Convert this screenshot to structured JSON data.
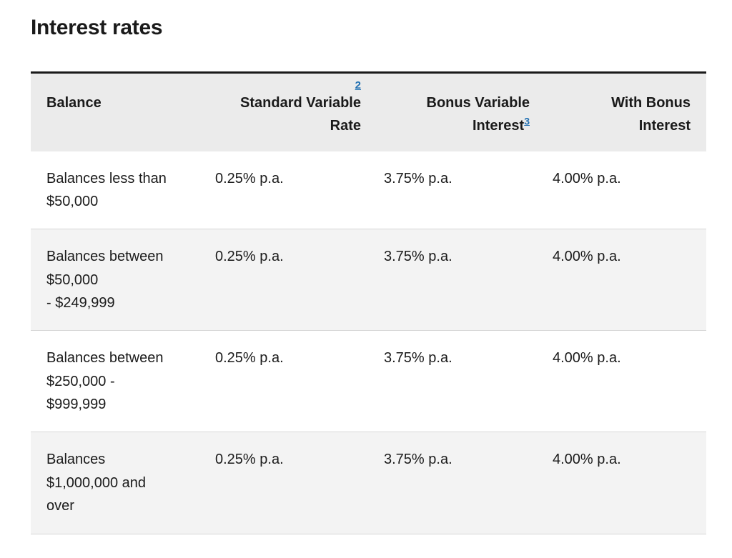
{
  "page": {
    "title": "Interest rates"
  },
  "table": {
    "headers": {
      "balance": "Balance",
      "standard_line1": "Standard Variable",
      "standard_line2": "Rate",
      "standard_footnote": "2",
      "bonus_line1": "Bonus Variable",
      "bonus_line2": "Interest",
      "bonus_footnote": "3",
      "with_bonus_line1": "With Bonus",
      "with_bonus_line2": "Interest"
    },
    "rows": [
      {
        "balance_lines": [
          "Balances less than",
          "$50,000"
        ],
        "standard": "0.25% p.a.",
        "bonus": "3.75% p.a.",
        "with_bonus": "4.00% p.a."
      },
      {
        "balance_lines": [
          "Balances between",
          "$50,000",
          "- $249,999"
        ],
        "standard": "0.25% p.a.",
        "bonus": "3.75% p.a.",
        "with_bonus": "4.00% p.a."
      },
      {
        "balance_lines": [
          "Balances between",
          "$250,000 -",
          "$999,999"
        ],
        "standard": "0.25% p.a.",
        "bonus": "3.75% p.a.",
        "with_bonus": "4.00% p.a."
      },
      {
        "balance_lines": [
          "Balances",
          "$1,000,000 and",
          "over"
        ],
        "standard": "0.25% p.a.",
        "bonus": "3.75% p.a.",
        "with_bonus": "4.00% p.a."
      }
    ]
  },
  "colors": {
    "header_bg": "#ebebeb",
    "alt_row_bg": "#f3f3f3",
    "link": "#1f6fb2",
    "text": "#1a1a1a"
  }
}
